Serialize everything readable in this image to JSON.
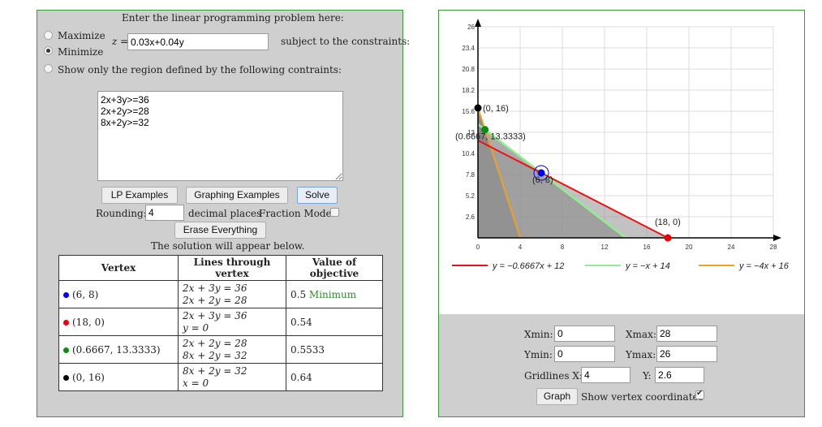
{
  "lp": {
    "header": "Enter the linear programming problem here:",
    "maximize_label": "Maximize",
    "minimize_label": "Minimize",
    "objective_prefix": "z =",
    "objective_value": "0.03x+0.04y",
    "subject_to": "subject to the constraints:",
    "region_label": "Show only the region defined by the following contraints:",
    "constraints_text": "2x+3y>=36\n2x+2y>=28\n8x+2y>=32",
    "buttons": {
      "lp_examples": "LP Examples",
      "graphing_examples": "Graphing Examples",
      "solve": "Solve",
      "erase": "Erase Everything"
    },
    "rounding_label": "Rounding:",
    "rounding_value": "4",
    "decimal_places_label": "decimal places",
    "fraction_mode_label": "Fraction Mode",
    "solution_note": "The solution will appear below."
  },
  "table": {
    "headers": [
      "Vertex",
      "Lines through vertex",
      "Value of objective"
    ],
    "rows": [
      {
        "color": "#0000ee",
        "vertex": "(6, 8)",
        "line1": "2x + 3y = 36",
        "line2": "2x + 2y = 28",
        "value": "0.5",
        "note": "Minimum"
      },
      {
        "color": "#ee0000",
        "vertex": "(18, 0)",
        "line1": "2x + 3y = 36",
        "line2": "y = 0",
        "value": "0.54",
        "note": ""
      },
      {
        "color": "#108a10",
        "vertex": "(0.6667, 13.3333)",
        "line1": "2x + 2y = 28",
        "line2": "8x + 2y = 32",
        "value": "0.5533",
        "note": ""
      },
      {
        "color": "#000000",
        "vertex": "(0, 16)",
        "line1": "8x + 2y = 32",
        "line2": "x = 0",
        "value": "0.64",
        "note": ""
      }
    ]
  },
  "graph": {
    "xmin": 0,
    "xmax": 28,
    "ymin": 0,
    "ymax": 26,
    "x_ticks": [
      "0",
      "4",
      "8",
      "12",
      "16",
      "20",
      "24",
      "28"
    ],
    "y_ticks": [
      "2.6",
      "5.2",
      "7.8",
      "10.4",
      "13",
      "15.6",
      "18.2",
      "20.8",
      "23.4",
      "26"
    ],
    "vertex_labels": [
      "(0, 16)",
      "(0.6667, 13.3333)",
      "(6, 8)",
      "(18, 0)"
    ],
    "legend": [
      {
        "color": "#ee1111",
        "label": "y = −0.6667x + 12"
      },
      {
        "color": "#90ee90",
        "label": "y = −x + 14"
      },
      {
        "color": "#f0a020",
        "label": "y = −4x + 16"
      }
    ]
  },
  "controls": {
    "xmin_label": "Xmin:",
    "xmin_value": "0",
    "xmax_label": "Xmax:",
    "xmax_value": "28",
    "ymin_label": "Ymin:",
    "ymin_value": "0",
    "ymax_label": "Ymax:",
    "ymax_value": "26",
    "gridx_label": "Gridlines X:",
    "gridx_value": "4",
    "gridy_label": "Y:",
    "gridy_value": "2.6",
    "graph_button": "Graph",
    "show_vertex_label": "Show vertex coordinates"
  }
}
